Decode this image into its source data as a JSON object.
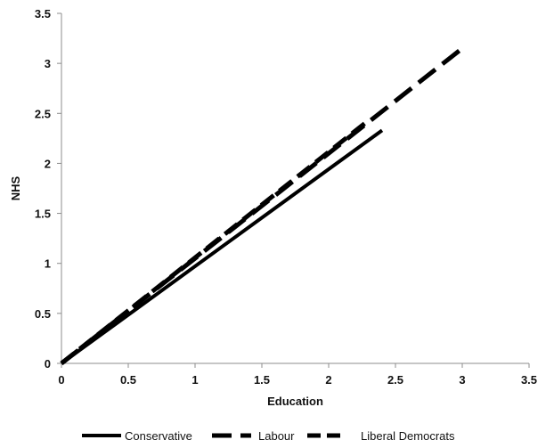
{
  "chart_data": {
    "type": "line",
    "title": "",
    "xlabel": "Education",
    "ylabel": "NHS",
    "xlim": [
      0,
      3.5
    ],
    "ylim": [
      0,
      3.5
    ],
    "x_ticks": [
      "0",
      "0.5",
      "1",
      "1.5",
      "2",
      "2.5",
      "3",
      "3.5"
    ],
    "y_ticks": [
      "0",
      "0.5",
      "1",
      "1.5",
      "2",
      "2.5",
      "3",
      "3.5"
    ],
    "grid": false,
    "legend_position": "bottom",
    "series": [
      {
        "name": "Conservative",
        "line_style": "solid",
        "color": "#000000",
        "x": [
          0,
          2.4
        ],
        "y": [
          0,
          2.33
        ]
      },
      {
        "name": "Labour",
        "line_style": "dash",
        "color": "#000000",
        "x": [
          0,
          3.0
        ],
        "y": [
          0,
          3.15
        ]
      },
      {
        "name": "Liberal Democrats",
        "line_style": "dash",
        "color": "#000000",
        "x": [
          0,
          2.27
        ],
        "y": [
          0,
          2.4
        ]
      }
    ]
  }
}
